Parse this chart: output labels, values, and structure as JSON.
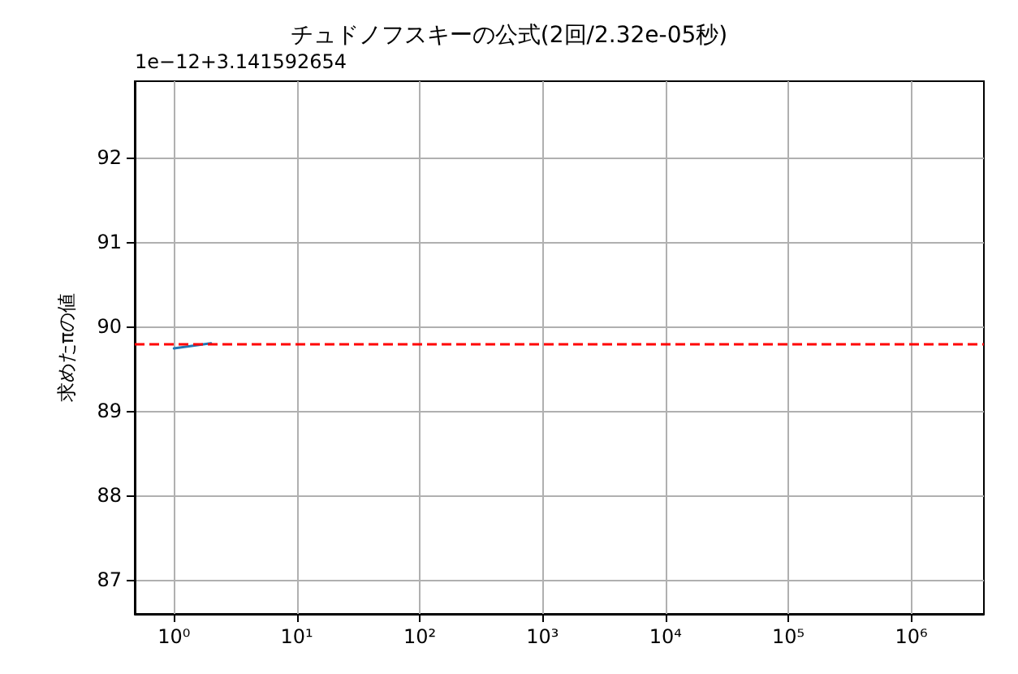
{
  "chart_data": {
    "type": "line",
    "title": "チュドノフスキーの公式(2回/2.32e-05秒)",
    "ylabel": "求めたπの値",
    "annotations": [
      "1e−12+3.141592654"
    ],
    "x": [
      1,
      2
    ],
    "series": [
      {
        "color": "#1f77b4",
        "values": [
          89.74,
          89.8
        ]
      }
    ],
    "log": "x",
    "xlim": [
      0.48,
      3900000
    ],
    "xticks": [
      {
        "value": 1,
        "label": "10⁰"
      },
      {
        "value": 10,
        "label": "10¹"
      },
      {
        "value": 100,
        "label": "10²"
      },
      {
        "value": 1000,
        "label": "10³"
      },
      {
        "value": 10000,
        "label": "10⁴"
      },
      {
        "value": 100000,
        "label": "10⁵"
      },
      {
        "value": 1000000,
        "label": "10⁶"
      }
    ],
    "ylim": [
      86.6,
      92.9
    ],
    "yticks": [
      87,
      88,
      89,
      90,
      91,
      92
    ],
    "ref_lines": [
      {
        "axis": "y",
        "value": 89.8,
        "color": "#ff0000",
        "line_style": "dashed"
      }
    ],
    "grid": true,
    "marker": "none",
    "line_style": "solid"
  }
}
